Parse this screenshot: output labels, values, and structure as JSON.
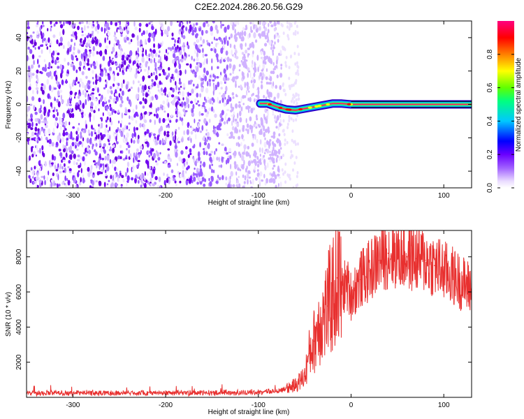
{
  "title": "C2E2.2024.286.20.56.G29",
  "chart_data": [
    {
      "type": "heatmap",
      "xlabel": "Height of straight line (km)",
      "ylabel": "Frequency (Hz)",
      "xlim": [
        -350,
        130
      ],
      "ylim": [
        -50,
        50
      ],
      "x_ticks": [
        -300,
        -200,
        -100,
        0,
        100
      ],
      "y_ticks": [
        -40,
        -20,
        0,
        20,
        40
      ],
      "noise_region_x": [
        -350,
        -75
      ],
      "signal_trace": {
        "x": [
          -98,
          -90,
          -80,
          -70,
          -60,
          -50,
          -40,
          -30,
          -20,
          -10,
          0,
          130
        ],
        "y": [
          0.5,
          0.5,
          -1.5,
          -3.0,
          -3.5,
          -2.5,
          -1.5,
          -0.5,
          0.5,
          0.5,
          0.0,
          0.0
        ]
      },
      "colorbar": {
        "label": "Normalized spectral amplitude",
        "ticks": [
          0.0,
          0.2,
          0.4,
          0.6,
          0.8
        ],
        "range": [
          0,
          1
        ],
        "colors": [
          "#f4eeff",
          "#d8b8ff",
          "#8000ff",
          "#0000ff",
          "#00bfff",
          "#00ff7f",
          "#7fff00",
          "#ffff00",
          "#ff7f00",
          "#ff0000",
          "#ff0080"
        ]
      }
    },
    {
      "type": "line",
      "xlabel": "Height of straight line (km)",
      "ylabel": "SNR (10 * v/v)",
      "xlim": [
        -350,
        130
      ],
      "ylim": [
        0,
        9500
      ],
      "x_ticks": [
        -300,
        -200,
        -100,
        0,
        100
      ],
      "y_ticks": [
        2000,
        4000,
        6000,
        8000
      ],
      "color": "#e8302f",
      "series": [
        {
          "x": [
            -350,
            -300,
            -250,
            -200,
            -150,
            -100,
            -75,
            -60,
            -50,
            -45,
            -40,
            -35,
            -30,
            -25,
            -20,
            -15,
            -10,
            -5,
            0,
            10,
            20,
            30,
            40,
            50,
            60,
            70,
            80,
            90,
            100,
            110,
            120,
            130
          ],
          "y": [
            250,
            250,
            250,
            260,
            260,
            280,
            400,
            700,
            1200,
            2500,
            3200,
            4200,
            4500,
            5200,
            5800,
            6800,
            6000,
            6500,
            5800,
            6700,
            7200,
            7800,
            8200,
            8100,
            8000,
            7900,
            7800,
            7500,
            7200,
            6900,
            6500,
            6200
          ]
        }
      ]
    }
  ]
}
